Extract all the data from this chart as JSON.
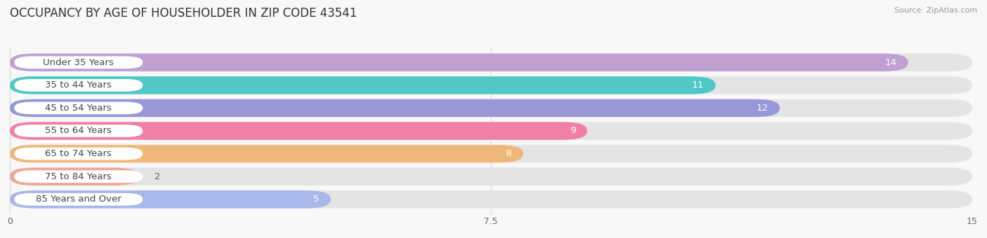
{
  "title": "OCCUPANCY BY AGE OF HOUSEHOLDER IN ZIP CODE 43541",
  "source": "Source: ZipAtlas.com",
  "categories": [
    "Under 35 Years",
    "35 to 44 Years",
    "45 to 54 Years",
    "55 to 64 Years",
    "65 to 74 Years",
    "75 to 84 Years",
    "85 Years and Over"
  ],
  "values": [
    14,
    11,
    12,
    9,
    8,
    2,
    5
  ],
  "bar_colors": [
    "#c0a0d0",
    "#50c8c8",
    "#9898d8",
    "#f080a8",
    "#f0b878",
    "#f0a898",
    "#a8b8e8"
  ],
  "xlim": [
    0,
    15
  ],
  "xticks": [
    0,
    7.5,
    15
  ],
  "background_color": "#f8f8f8",
  "bar_bg_color": "#e4e4e4",
  "bar_bg_color2": "#ebebeb",
  "title_fontsize": 12,
  "label_fontsize": 9.5,
  "value_fontsize": 9.5
}
